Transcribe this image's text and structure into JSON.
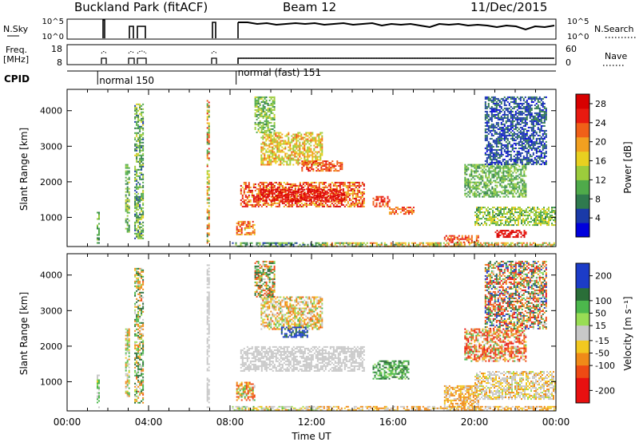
{
  "header": {
    "title": "Buckland Park (fitACF)",
    "beam": "Beam 12",
    "date": "11/Dec/2015"
  },
  "status_panels": {
    "nsky_label": "N.Sky",
    "nsky_ticks": [
      "10^5",
      "10^0"
    ],
    "nsearch_label": "N.Search",
    "nsearch_ticks": [
      "10^5",
      "10^0"
    ],
    "freq_label_1": "Freq.",
    "freq_label_2": "[MHz]",
    "freq_ticks": [
      "18",
      "8"
    ],
    "nave_label": "Nave",
    "nave_ticks": [
      "60",
      "0"
    ],
    "cpid_label": "CPID",
    "cpid_modes": [
      {
        "label": "normal 150",
        "start_hour": 1.5
      },
      {
        "label": "normal (fast) 151",
        "start_hour": 8.3
      }
    ]
  },
  "chart_data": [
    {
      "type": "heatmap",
      "name": "power-panel",
      "ylabel": "Slant Range [km]",
      "xlabel": "",
      "ylim": [
        180,
        4600
      ],
      "yticks": [
        1000,
        2000,
        3000,
        4000
      ],
      "xlim": [
        0,
        24
      ],
      "colorbar": {
        "label": "Power [dB]",
        "ticks": [
          4,
          8,
          12,
          16,
          20,
          24,
          28
        ],
        "range": [
          0,
          30
        ],
        "colors": [
          "#0000dd",
          "#1a3aa8",
          "#2f7a4e",
          "#4faa4a",
          "#9ccc3c",
          "#e8d020",
          "#f2a020",
          "#f06018",
          "#e81a10",
          "#d80000"
        ]
      },
      "echo_regions": [
        {
          "t0": 1.45,
          "t1": 1.6,
          "r0": 300,
          "r1": 1200,
          "v0": 6,
          "v1": 14
        },
        {
          "t0": 2.85,
          "t1": 3.05,
          "r0": 600,
          "r1": 2500,
          "v0": 6,
          "v1": 16
        },
        {
          "t0": 3.3,
          "t1": 3.75,
          "r0": 400,
          "r1": 4200,
          "v0": 5,
          "v1": 16
        },
        {
          "t0": 6.85,
          "t1": 7.0,
          "r0": 300,
          "r1": 4300,
          "v0": 8,
          "v1": 26
        },
        {
          "t0": 8.1,
          "t1": 12.5,
          "r0": 200,
          "r1": 300,
          "v0": 4,
          "v1": 14
        },
        {
          "t0": 12.5,
          "t1": 24.0,
          "r0": 200,
          "r1": 300,
          "v0": 8,
          "v1": 24
        },
        {
          "t0": 8.3,
          "t1": 9.2,
          "r0": 500,
          "r1": 900,
          "v0": 14,
          "v1": 26
        },
        {
          "t0": 8.5,
          "t1": 14.6,
          "r0": 1300,
          "r1": 2000,
          "v0": 16,
          "v1": 30
        },
        {
          "t0": 9.5,
          "t1": 13.6,
          "r0": 1450,
          "r1": 1800,
          "v0": 24,
          "v1": 30
        },
        {
          "t0": 9.5,
          "t1": 12.5,
          "r0": 2500,
          "r1": 3400,
          "v0": 12,
          "v1": 22
        },
        {
          "t0": 11.5,
          "t1": 13.5,
          "r0": 2300,
          "r1": 2600,
          "v0": 20,
          "v1": 28
        },
        {
          "t0": 9.2,
          "t1": 10.2,
          "r0": 3400,
          "r1": 4400,
          "v0": 8,
          "v1": 16
        },
        {
          "t0": 15.0,
          "t1": 15.8,
          "r0": 1300,
          "r1": 1600,
          "v0": 20,
          "v1": 28
        },
        {
          "t0": 15.8,
          "t1": 17.0,
          "r0": 1100,
          "r1": 1300,
          "v0": 18,
          "v1": 26
        },
        {
          "t0": 18.5,
          "t1": 20.2,
          "r0": 300,
          "r1": 500,
          "v0": 18,
          "v1": 28
        },
        {
          "t0": 19.5,
          "t1": 22.5,
          "r0": 1600,
          "r1": 2500,
          "v0": 8,
          "v1": 14
        },
        {
          "t0": 20.0,
          "t1": 24.0,
          "r0": 800,
          "r1": 1300,
          "v0": 8,
          "v1": 18
        },
        {
          "t0": 21.0,
          "t1": 22.5,
          "r0": 450,
          "r1": 650,
          "v0": 24,
          "v1": 30
        },
        {
          "t0": 20.5,
          "t1": 23.5,
          "r0": 2500,
          "r1": 4400,
          "v0": 2,
          "v1": 8
        }
      ]
    },
    {
      "type": "heatmap",
      "name": "velocity-panel",
      "ylabel": "Slant Range [km]",
      "xlabel": "Time UT",
      "ylim": [
        180,
        4600
      ],
      "yticks": [
        1000,
        2000,
        3000,
        4000
      ],
      "xlim": [
        0,
        24
      ],
      "xticks": [
        "00:00",
        "04:00",
        "08:00",
        "12:00",
        "16:00",
        "20:00",
        "00:00"
      ],
      "colorbar": {
        "label": "Velocity [m s⁻¹]",
        "ticks": [
          200,
          100,
          50,
          15,
          -15,
          -50,
          -100,
          -200
        ],
        "bins": [
          {
            "color": "#1c3cc8",
            "h": 2
          },
          {
            "color": "#2a6e38",
            "h": 1
          },
          {
            "color": "#4cb84c",
            "h": 1
          },
          {
            "color": "#99dd55",
            "h": 1
          },
          {
            "color": "#c8c8c8",
            "h": 1.2
          },
          {
            "color": "#f2c820",
            "h": 1
          },
          {
            "color": "#f08a18",
            "h": 1
          },
          {
            "color": "#ee4a14",
            "h": 1
          },
          {
            "color": "#e81010",
            "h": 2
          }
        ]
      },
      "echo_regions": [
        {
          "t0": 1.45,
          "t1": 1.6,
          "r0": 300,
          "r1": 1200,
          "v0": -20,
          "v1": 60
        },
        {
          "t0": 2.85,
          "t1": 3.05,
          "r0": 600,
          "r1": 2500,
          "v0": -60,
          "v1": 60
        },
        {
          "t0": 3.3,
          "t1": 3.75,
          "r0": 400,
          "r1": 4200,
          "v0": -80,
          "v1": 120
        },
        {
          "t0": 6.85,
          "t1": 7.0,
          "r0": 300,
          "r1": 4300,
          "v0": -10,
          "v1": 10
        },
        {
          "t0": 8.1,
          "t1": 12.5,
          "r0": 200,
          "r1": 320,
          "v0": -40,
          "v1": 40
        },
        {
          "t0": 12.5,
          "t1": 24.0,
          "r0": 200,
          "r1": 320,
          "v0": -60,
          "v1": 10
        },
        {
          "t0": 8.5,
          "t1": 14.6,
          "r0": 1300,
          "r1": 2000,
          "v0": -12,
          "v1": 12
        },
        {
          "t0": 8.3,
          "t1": 9.2,
          "r0": 500,
          "r1": 1000,
          "v0": -120,
          "v1": 60
        },
        {
          "t0": 9.5,
          "t1": 12.5,
          "r0": 2500,
          "r1": 3400,
          "v0": -80,
          "v1": 40
        },
        {
          "t0": 10.5,
          "t1": 11.8,
          "r0": 2250,
          "r1": 2550,
          "v0": 120,
          "v1": 250
        },
        {
          "t0": 9.2,
          "t1": 10.2,
          "r0": 3400,
          "r1": 4400,
          "v0": -150,
          "v1": 150
        },
        {
          "t0": 15.0,
          "t1": 16.8,
          "r0": 1100,
          "r1": 1600,
          "v0": 20,
          "v1": 120
        },
        {
          "t0": 18.5,
          "t1": 20.2,
          "r0": 300,
          "r1": 900,
          "v0": -60,
          "v1": 0
        },
        {
          "t0": 19.5,
          "t1": 22.5,
          "r0": 1600,
          "r1": 2500,
          "v0": -200,
          "v1": 60
        },
        {
          "t0": 20.0,
          "t1": 24.0,
          "r0": 500,
          "r1": 1300,
          "v0": -40,
          "v1": 20
        },
        {
          "t0": 20.5,
          "t1": 23.5,
          "r0": 2500,
          "r1": 4400,
          "v0": -200,
          "v1": 200
        }
      ]
    }
  ]
}
